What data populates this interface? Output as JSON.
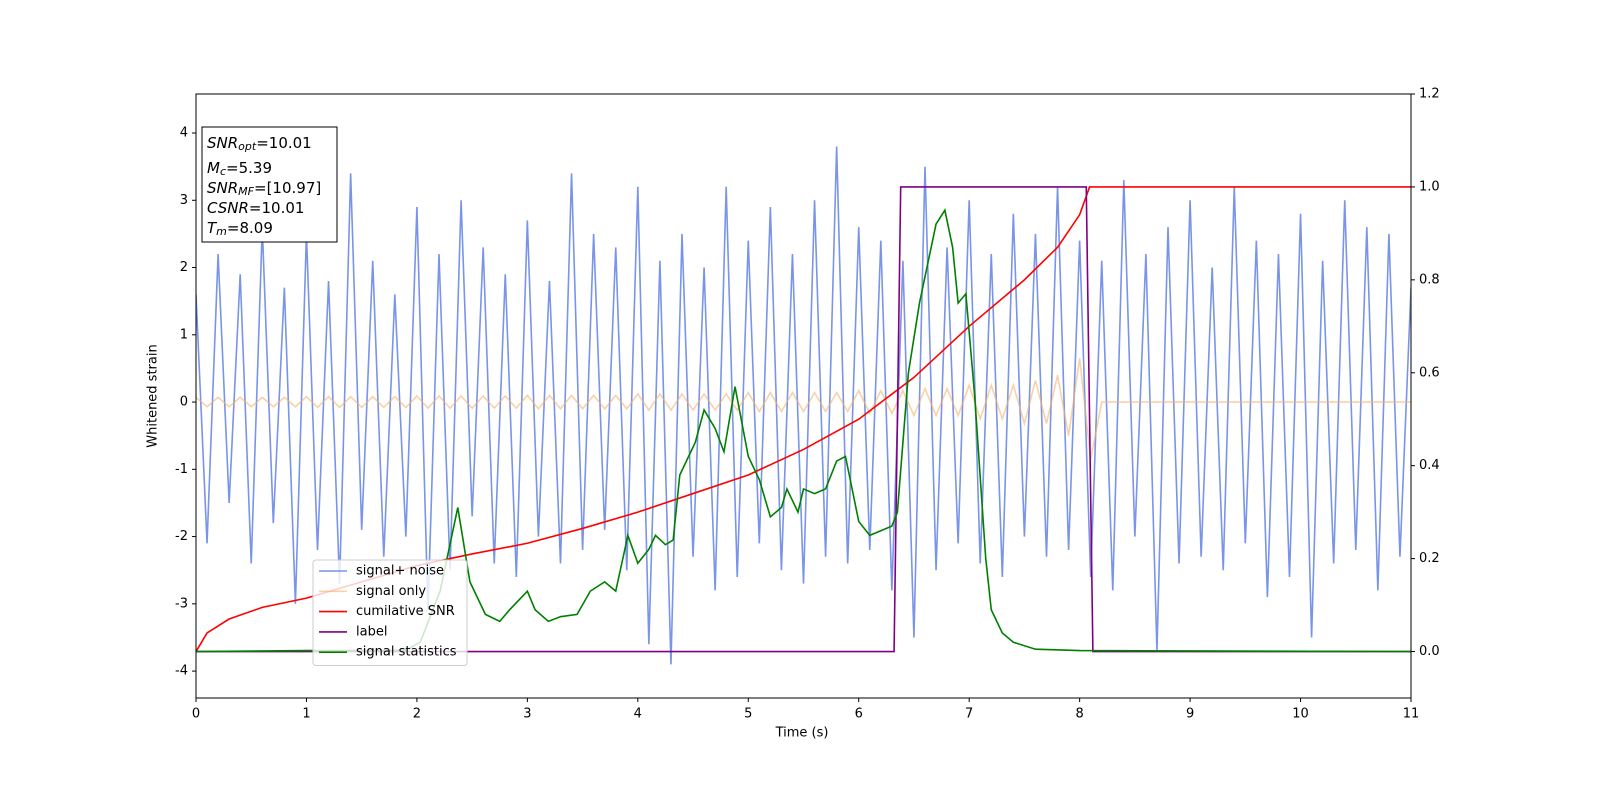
{
  "chart_data": {
    "type": "line",
    "xlabel": "Time (s)",
    "ylabel": "Whitened strain",
    "xlim": [
      0,
      11
    ],
    "xticks": [
      0,
      1,
      2,
      3,
      4,
      5,
      6,
      7,
      8,
      9,
      10,
      11
    ],
    "ylim": [
      -4.4,
      4.58
    ],
    "yticks": [
      -4,
      -3,
      -2,
      -1,
      0,
      1,
      2,
      3,
      4
    ],
    "y2lim": [
      -0.1,
      1.2
    ],
    "y2ticks": [
      {
        "value": 0,
        "label": "0.0"
      },
      {
        "value": 0.2,
        "label": "0.2"
      },
      {
        "value": 0.4,
        "label": "0.4"
      },
      {
        "value": 0.6,
        "label": "0.6"
      },
      {
        "value": 0.8,
        "label": "0.8"
      },
      {
        "value": 1,
        "label": "1.0"
      },
      {
        "value": 1.2,
        "label": "1.2"
      }
    ],
    "annotations": [
      {
        "main": "SNR",
        "sub": "opt",
        "rest": "=10.01"
      },
      {
        "main": "M",
        "sub": "c",
        "rest": "=5.39"
      },
      {
        "main": "SNR",
        "sub": "MF",
        "rest": "=[10.97]"
      },
      {
        "main": "CSNR",
        "rest": "=10.01"
      },
      {
        "main": "T",
        "sub": "m",
        "rest": "=8.09"
      }
    ],
    "series": [
      {
        "name": "signal+ noise",
        "color": "#6a88e6",
        "opacity": 0.9,
        "x": [
          0,
          0.1,
          0.2,
          0.3,
          0.4,
          0.5,
          0.6,
          0.7,
          0.8,
          0.9,
          1,
          1.1,
          1.2,
          1.3,
          1.4,
          1.5,
          1.6,
          1.7,
          1.8,
          1.9,
          2,
          2.1,
          2.2,
          2.3,
          2.4,
          2.5,
          2.6,
          2.7,
          2.8,
          2.9,
          3,
          3.1,
          3.2,
          3.3,
          3.4,
          3.5,
          3.6,
          3.7,
          3.8,
          3.9,
          4,
          4.1,
          4.2,
          4.3,
          4.4,
          4.5,
          4.6,
          4.7,
          4.8,
          4.9,
          5,
          5.1,
          5.2,
          5.3,
          5.4,
          5.5,
          5.6,
          5.7,
          5.8,
          5.9,
          6,
          6.1,
          6.2,
          6.3,
          6.4,
          6.5,
          6.6,
          6.7,
          6.8,
          6.9,
          7,
          7.1,
          7.2,
          7.3,
          7.4,
          7.5,
          7.6,
          7.7,
          7.8,
          7.9,
          8,
          8.1,
          8.2,
          8.3,
          8.4,
          8.5,
          8.6,
          8.7,
          8.8,
          8.9,
          9,
          9.1,
          9.2,
          9.3,
          9.4,
          9.5,
          9.6,
          9.7,
          9.8,
          9.9,
          10,
          10.1,
          10.2,
          10.3,
          10.4,
          10.5,
          10.6,
          10.7,
          10.8,
          10.9,
          11
        ],
        "values": [
          1.6,
          -2.1,
          2.2,
          -1.5,
          1.9,
          -2.4,
          2.6,
          -1.8,
          1.7,
          -3.0,
          2.5,
          -2.2,
          1.8,
          -2.7,
          3.4,
          -1.9,
          2.1,
          -2.3,
          1.6,
          -2.0,
          2.9,
          -3.1,
          2.2,
          -2.5,
          3.0,
          -1.7,
          2.3,
          -2.4,
          1.9,
          -2.6,
          2.7,
          -2.0,
          1.8,
          -2.4,
          3.4,
          -2.2,
          2.5,
          -1.9,
          2.3,
          -2.5,
          3.2,
          -3.6,
          2.1,
          -3.9,
          2.5,
          -2.3,
          2.0,
          -2.8,
          3.2,
          -2.6,
          2.4,
          -2.1,
          2.9,
          -2.5,
          2.2,
          -2.7,
          3.0,
          -2.3,
          3.8,
          -2.4,
          2.6,
          -2.2,
          2.4,
          -2.8,
          2.1,
          -3.5,
          3.5,
          -2.5,
          2.3,
          -2.1,
          3.0,
          -2.4,
          2.2,
          -2.6,
          2.8,
          -2.0,
          2.5,
          -2.3,
          3.2,
          -2.2,
          2.4,
          -2.6,
          2.1,
          -2.8,
          3.3,
          -2.0,
          2.2,
          -3.7,
          2.6,
          -2.4,
          3.0,
          -2.3,
          2.0,
          -2.5,
          3.2,
          -2.1,
          2.4,
          -2.9,
          2.2,
          -2.6,
          2.8,
          -3.5,
          2.1,
          -2.4,
          3.0,
          -2.2,
          2.6,
          -2.8,
          2.5,
          -2.3,
          1.7
        ]
      },
      {
        "name": "signal only",
        "color": "#f5b26b",
        "opacity": 0.6,
        "x": [
          0,
          0.1,
          0.2,
          0.3,
          0.4,
          0.5,
          0.6,
          0.7,
          0.8,
          0.9,
          1,
          1.1,
          1.2,
          1.3,
          1.4,
          1.5,
          1.6,
          1.7,
          1.8,
          1.9,
          2,
          2.1,
          2.2,
          2.3,
          2.4,
          2.5,
          2.6,
          2.7,
          2.8,
          2.9,
          3,
          3.1,
          3.2,
          3.3,
          3.4,
          3.5,
          3.6,
          3.7,
          3.8,
          3.9,
          4,
          4.1,
          4.2,
          4.3,
          4.4,
          4.5,
          4.6,
          4.7,
          4.8,
          4.9,
          5,
          5.1,
          5.2,
          5.3,
          5.4,
          5.5,
          5.6,
          5.7,
          5.8,
          5.9,
          6,
          6.1,
          6.2,
          6.3,
          6.4,
          6.5,
          6.6,
          6.7,
          6.8,
          6.9,
          7,
          7.1,
          7.2,
          7.3,
          7.4,
          7.5,
          7.6,
          7.7,
          7.8,
          7.9,
          8,
          8.1,
          8.2,
          11
        ],
        "values": [
          0.07,
          -0.07,
          0.07,
          -0.07,
          0.07,
          -0.07,
          0.07,
          -0.07,
          0.07,
          -0.07,
          0.08,
          -0.08,
          0.08,
          -0.08,
          0.08,
          -0.08,
          0.08,
          -0.08,
          0.08,
          -0.08,
          0.09,
          -0.09,
          0.09,
          -0.09,
          0.09,
          -0.09,
          0.09,
          -0.09,
          0.09,
          -0.09,
          0.1,
          -0.1,
          0.1,
          -0.1,
          0.1,
          -0.1,
          0.1,
          -0.1,
          0.1,
          -0.1,
          0.12,
          -0.12,
          0.12,
          -0.12,
          0.12,
          -0.12,
          0.12,
          -0.12,
          0.12,
          -0.12,
          0.14,
          -0.14,
          0.14,
          -0.14,
          0.14,
          -0.14,
          0.14,
          -0.14,
          0.14,
          -0.14,
          0.17,
          -0.17,
          0.17,
          -0.17,
          0.17,
          -0.2,
          0.2,
          -0.2,
          0.2,
          -0.2,
          0.25,
          -0.25,
          0.25,
          -0.25,
          0.25,
          -0.32,
          0.32,
          -0.32,
          0.4,
          -0.5,
          0.65,
          -0.85,
          0,
          0
        ]
      },
      {
        "name": "cumilative SNR",
        "color": "#ff0000",
        "axis": "y2",
        "x": [
          0,
          0.1,
          0.3,
          0.6,
          1,
          1.5,
          2,
          2.5,
          3,
          3.5,
          4,
          4.5,
          5,
          5.5,
          6,
          6.5,
          7,
          7.5,
          7.8,
          8,
          8.09,
          11
        ],
        "values": [
          0,
          0.04,
          0.07,
          0.095,
          0.115,
          0.15,
          0.185,
          0.21,
          0.233,
          0.265,
          0.3,
          0.34,
          0.38,
          0.435,
          0.5,
          0.59,
          0.7,
          0.8,
          0.87,
          0.94,
          1,
          1
        ]
      },
      {
        "name": "label",
        "color": "#800080",
        "axis": "y2",
        "x": [
          0,
          6.32,
          6.38,
          8.06,
          8.12,
          11
        ],
        "values": [
          0,
          0,
          1,
          1,
          0,
          0
        ]
      },
      {
        "name": "signal statistics",
        "color": "#008000",
        "axis": "y2",
        "x": [
          0,
          1,
          1.9,
          2.03,
          2.21,
          2.37,
          2.48,
          2.62,
          2.75,
          2.84,
          3.0,
          3.07,
          3.19,
          3.3,
          3.45,
          3.57,
          3.7,
          3.8,
          3.91,
          4.0,
          4.1,
          4.16,
          4.25,
          4.32,
          4.38,
          4.52,
          4.6,
          4.7,
          4.78,
          4.88,
          5.0,
          5.1,
          5.2,
          5.3,
          5.35,
          5.45,
          5.5,
          5.6,
          5.7,
          5.8,
          5.88,
          6.0,
          6.1,
          6.2,
          6.3,
          6.35,
          6.45,
          6.55,
          6.7,
          6.78,
          6.85,
          6.9,
          6.97,
          7.05,
          7.15,
          7.2,
          7.3,
          7.4,
          7.6,
          8,
          11
        ],
        "values": [
          0,
          0.002,
          0.003,
          0.02,
          0.13,
          0.31,
          0.15,
          0.08,
          0.065,
          0.09,
          0.13,
          0.09,
          0.065,
          0.075,
          0.08,
          0.13,
          0.15,
          0.13,
          0.25,
          0.19,
          0.22,
          0.25,
          0.23,
          0.24,
          0.38,
          0.45,
          0.52,
          0.48,
          0.43,
          0.57,
          0.42,
          0.37,
          0.29,
          0.31,
          0.35,
          0.3,
          0.35,
          0.34,
          0.35,
          0.41,
          0.42,
          0.28,
          0.25,
          0.26,
          0.27,
          0.3,
          0.6,
          0.75,
          0.92,
          0.95,
          0.87,
          0.75,
          0.77,
          0.55,
          0.2,
          0.09,
          0.04,
          0.02,
          0.005,
          0.002,
          0
        ]
      }
    ]
  }
}
